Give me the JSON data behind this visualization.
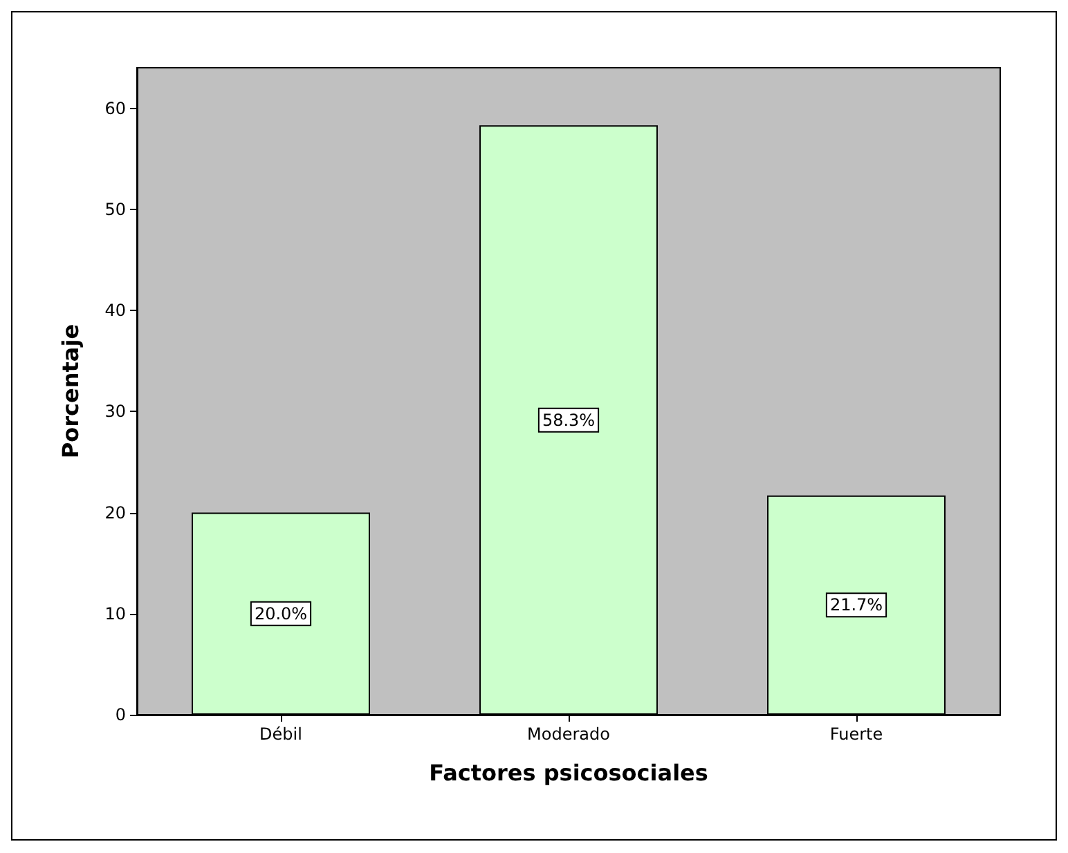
{
  "chart_data": {
    "type": "bar",
    "xlabel": "Factores psicosociales",
    "ylabel": "Porcentaje",
    "categories": [
      "Débil",
      "Moderado",
      "Fuerte"
    ],
    "values": [
      20.0,
      58.3,
      21.7
    ],
    "value_labels": [
      "20.0%",
      "58.3%",
      "21.7%"
    ],
    "color": "#ccffcc",
    "ylim": [
      0,
      64
    ],
    "yticks": [
      0,
      10,
      20,
      30,
      40,
      50,
      60
    ],
    "grid": false
  }
}
